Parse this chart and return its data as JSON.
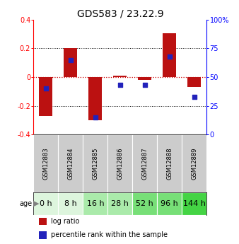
{
  "title": "GDS583 / 23.22.9",
  "samples": [
    "GSM12883",
    "GSM12884",
    "GSM12885",
    "GSM12886",
    "GSM12887",
    "GSM12888",
    "GSM12889"
  ],
  "ages": [
    "0 h",
    "8 h",
    "16 h",
    "28 h",
    "52 h",
    "96 h",
    "144 h"
  ],
  "log_ratio": [
    -0.27,
    0.2,
    -0.3,
    0.01,
    -0.02,
    0.305,
    -0.07
  ],
  "percentile_rank": [
    40,
    65,
    15,
    43,
    43,
    68,
    33
  ],
  "ylim_left": [
    -0.4,
    0.4
  ],
  "ylim_right": [
    0,
    100
  ],
  "left_ticks": [
    -0.4,
    -0.2,
    0.0,
    0.2,
    0.4
  ],
  "right_ticks": [
    0,
    25,
    50,
    75,
    100
  ],
  "bar_color": "#bb1111",
  "dot_color": "#2222bb",
  "age_bg_colors": [
    "#ddf5dd",
    "#ddf5dd",
    "#aaeaaa",
    "#aaeaaa",
    "#77df77",
    "#77df77",
    "#44d444"
  ],
  "sample_bg_color": "#cccccc",
  "legend_bar_color": "#bb1111",
  "legend_dot_color": "#2222bb",
  "zero_line_color": "#cc0000",
  "grid_color": "#000000",
  "title_fontsize": 10,
  "tick_fontsize": 7,
  "age_fontsize": 8,
  "sample_fontsize": 6
}
